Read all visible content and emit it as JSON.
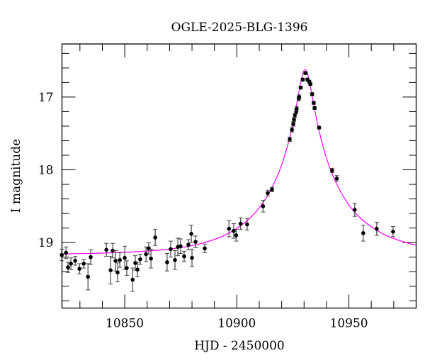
{
  "chart_data": {
    "type": "scatter",
    "title": "OGLE-2025-BLG-1396",
    "xlabel": "HJD - 2450000",
    "ylabel": "I magnitude",
    "xlim": [
      10822,
      10980
    ],
    "ylim": [
      19.9,
      16.27
    ],
    "y_inverted": true,
    "grid": false,
    "x_major_ticks": [
      10850,
      10900,
      10950
    ],
    "x_minor_step": 10,
    "y_major_ticks": [
      17,
      18,
      19
    ],
    "y_minor_step": 0.2,
    "colors": {
      "data": "#000000",
      "errorbar": "#444444",
      "model": "#ff00ff"
    },
    "series": [
      {
        "kind": "data",
        "x": [
          10821.9,
          10823.8,
          10824.7,
          10826.0,
          10827.9,
          10829.8,
          10831.7,
          10833.6,
          10834.8,
          10841.8,
          10843.7,
          10844.6,
          10845.9,
          10846.8,
          10847.8,
          10850.0,
          10850.9,
          10853.5,
          10854.7,
          10855.7,
          10856.9,
          10859.5,
          10860.7,
          10861.7,
          10863.6,
          10868.9,
          10870.5,
          10872.4,
          10873.7,
          10874.9,
          10876.5,
          10878.4,
          10879.7,
          10880.0,
          10881.6,
          10885.7,
          10896.5,
          10898.6,
          10899.7,
          10901.7,
          10904.6,
          10911.7,
          10913.8,
          10915.7,
          10923.6,
          10924.6,
          10925.2,
          10925.5,
          10925.9,
          10926.5,
          10926.7,
          10927.6,
          10927.8,
          10928.5,
          10929.4,
          10930.6,
          10931.5,
          10932.3,
          10932.8,
          10933.6,
          10934.3,
          10934.7,
          10936.7,
          10942.5,
          10944.6,
          10952.6,
          10956.4,
          10962.4,
          10969.7
        ],
        "y": [
          19.17,
          19.14,
          19.34,
          19.29,
          19.25,
          19.36,
          19.29,
          19.47,
          19.2,
          19.1,
          19.38,
          19.11,
          19.25,
          19.41,
          19.24,
          19.21,
          19.35,
          19.51,
          19.28,
          19.37,
          19.23,
          19.16,
          19.08,
          19.22,
          18.93,
          19.27,
          19.09,
          19.24,
          19.06,
          19.05,
          19.19,
          19.03,
          18.88,
          19.21,
          18.99,
          19.08,
          18.81,
          18.84,
          18.9,
          18.74,
          18.75,
          18.5,
          18.32,
          18.27,
          17.58,
          17.45,
          17.37,
          17.31,
          17.25,
          17.2,
          17.16,
          17.02,
          17.0,
          16.87,
          16.76,
          16.67,
          16.76,
          16.79,
          16.82,
          16.96,
          17.08,
          17.15,
          17.42,
          18.01,
          18.12,
          18.55,
          18.87,
          18.81,
          18.85
        ],
        "err": [
          0.08,
          0.08,
          0.07,
          0.08,
          0.06,
          0.07,
          0.06,
          0.18,
          0.1,
          0.09,
          0.19,
          0.1,
          0.14,
          0.13,
          0.1,
          0.16,
          0.1,
          0.16,
          0.1,
          0.1,
          0.07,
          0.1,
          0.08,
          0.13,
          0.11,
          0.12,
          0.11,
          0.13,
          0.12,
          0.1,
          0.07,
          0.07,
          0.12,
          0.12,
          0.08,
          0.06,
          0.11,
          0.1,
          0.08,
          0.08,
          0.08,
          0.08,
          0.04,
          0.03,
          0.03,
          0.03,
          0.03,
          0.03,
          0.03,
          0.03,
          0.03,
          0.03,
          0.03,
          0.02,
          0.02,
          0.02,
          0.02,
          0.02,
          0.02,
          0.02,
          0.02,
          0.02,
          0.02,
          0.03,
          0.04,
          0.09,
          0.11,
          0.09,
          0.07
        ]
      },
      {
        "kind": "model",
        "x": [
          10822,
          10840,
          10860,
          10875,
          10885,
          10895,
          10905,
          10912,
          10918,
          10922,
          10925,
          10927,
          10928.5,
          10929.5,
          10930.5,
          10931.5,
          10932.5,
          10934,
          10936,
          10939,
          10943,
          10949,
          10956,
          10966,
          10976,
          10980
        ],
        "y": [
          19.156,
          19.145,
          19.117,
          19.069,
          19.005,
          18.893,
          18.688,
          18.437,
          18.091,
          17.739,
          17.365,
          17.048,
          16.8,
          16.673,
          16.62,
          16.673,
          16.8,
          17.048,
          17.365,
          17.739,
          18.091,
          18.437,
          18.688,
          18.893,
          19.005,
          19.035
        ]
      }
    ]
  }
}
